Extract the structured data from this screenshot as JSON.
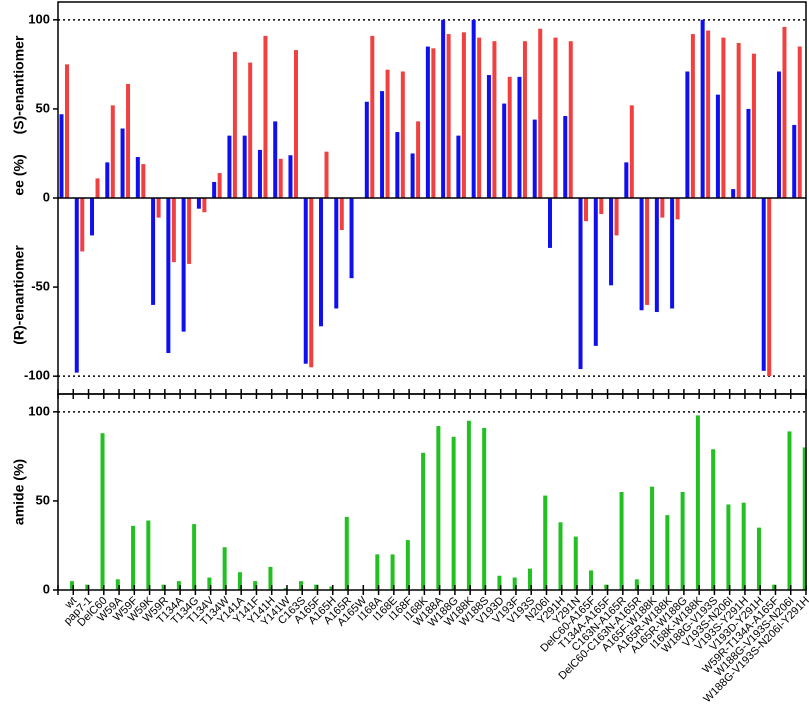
{
  "chart_data": [
    {
      "type": "bar",
      "y_label_top": "(S)-enantiomer",
      "y_label_mid": "ee (%)",
      "y_label_bottom": "(R)-enantiomer",
      "series": [
        {
          "color": "#1010ee",
          "values": [
            47,
            -98,
            -21,
            20,
            39,
            23,
            -60,
            -87,
            -75,
            -6,
            9,
            35,
            35,
            27,
            43,
            24,
            -93,
            -72,
            -62,
            -45,
            54,
            60,
            37,
            25,
            85,
            100,
            35,
            100,
            69,
            53,
            68,
            44,
            -28,
            46,
            -96,
            -83,
            -49,
            20,
            -63,
            -64,
            -62,
            71,
            100,
            58,
            5,
            50,
            -97,
            71,
            41
          ]
        },
        {
          "color": "#f04040",
          "values": [
            75,
            -30,
            11,
            52,
            64,
            19,
            -11,
            -36,
            -37,
            -8,
            14,
            82,
            76,
            91,
            22,
            83,
            -95,
            26,
            -18,
            null,
            91,
            72,
            71,
            43,
            84,
            92,
            93,
            90,
            88,
            68,
            88,
            95,
            90,
            88,
            -13,
            -9,
            -21,
            52,
            -60,
            -11,
            -12,
            92,
            94,
            90,
            87,
            81,
            -100,
            96,
            85
          ]
        }
      ],
      "ylim": [
        -110,
        110
      ],
      "yticks": [
        -100,
        -50,
        0,
        50,
        100
      ],
      "hlines": [
        -100,
        100
      ]
    },
    {
      "type": "bar",
      "y_label": "amide (%)",
      "categories": [
        "wt",
        "pap7-1",
        "DelC60",
        "W59A",
        "W59F",
        "W59K",
        "W59R",
        "T134A",
        "T134G",
        "T134V",
        "T134W",
        "Y141A",
        "Y141F",
        "Y141H",
        "Y141W",
        "C163S",
        "A165F",
        "A165H",
        "A165R",
        "A165W",
        "I168A",
        "I168E",
        "I168F",
        "I168K",
        "W188A",
        "W188G",
        "W188K",
        "W188S",
        "V193D",
        "V193F",
        "V193S",
        "N206I",
        "Y291H",
        "Y291N",
        "DelC60-A165F",
        "T134A-A165F",
        "C163N-A165R",
        "DelC60-C163N-A165R",
        "A165F-W188K",
        "A165R-W188K",
        "A165R-W188G",
        "I168K-W188K",
        "W188G-V193S",
        "V193S-N206I",
        "V193S-Y291H",
        "V193D-Y291H",
        "W59R-T134A-A165F",
        "W188G-V193S-N206I",
        "W188G-V193S-N206I-Y291H"
      ],
      "color": "#22c022",
      "values": [
        5,
        3,
        88,
        6,
        36,
        39,
        3,
        5,
        37,
        7,
        24,
        10,
        5,
        13,
        1,
        5,
        3,
        2,
        41,
        0,
        20,
        20,
        28,
        77,
        92,
        86,
        95,
        91,
        8,
        7,
        12,
        53,
        38,
        30,
        11,
        3,
        55,
        6,
        58,
        42,
        55,
        98,
        79,
        48,
        49,
        35,
        3,
        89,
        80
      ],
      "ylim": [
        0,
        110
      ],
      "yticks": [
        0,
        50,
        100
      ],
      "hlines": [
        100
      ]
    }
  ]
}
